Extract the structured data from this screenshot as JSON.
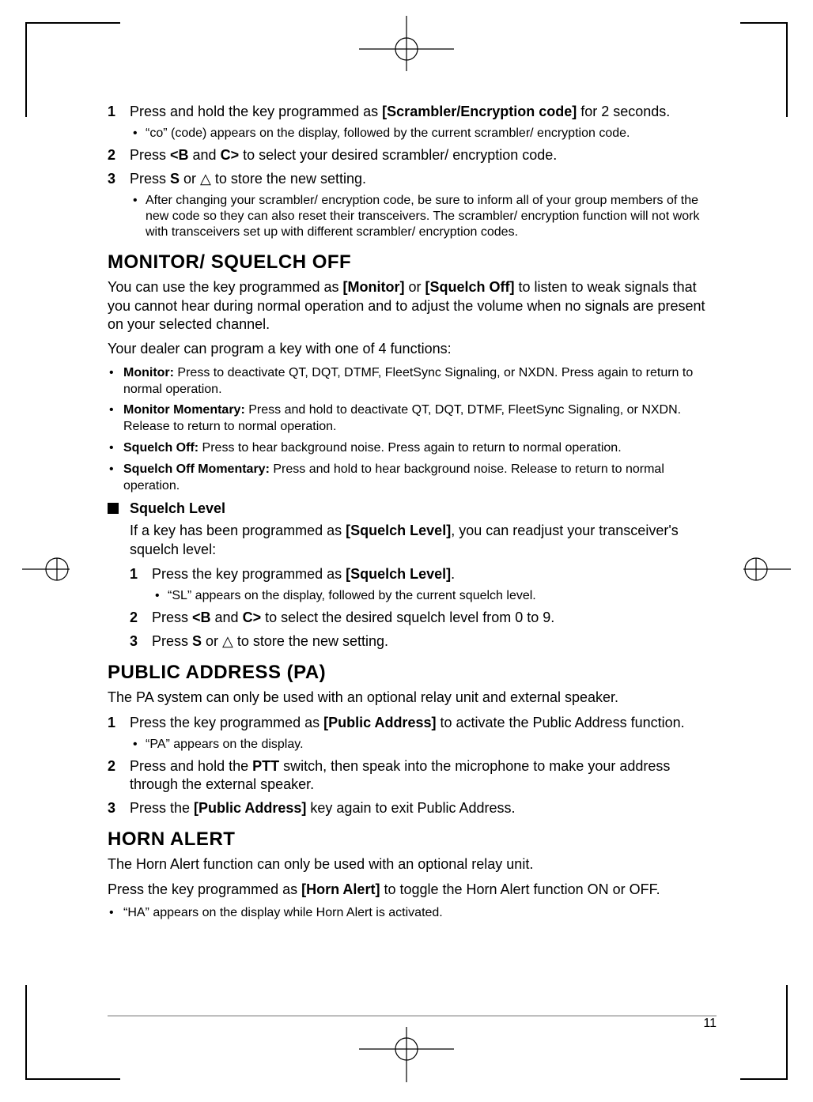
{
  "page_number": "11",
  "colors": {
    "text": "#000000",
    "bg": "#ffffff",
    "rule": "#bfbfbf"
  },
  "steps_top": [
    {
      "num": "1",
      "html": "Press and hold the key programmed as <b>[Scrambler/Encryption code]</b> for 2 seconds.",
      "sub": [
        "“co” (code) appears on the display, followed by the current scrambler/ encryption code."
      ]
    },
    {
      "num": "2",
      "html": "Press <b>&lt;B</b> and <b>C&gt;</b> to select your desired scrambler/ encryption code.",
      "sub": []
    },
    {
      "num": "3",
      "html": "Press <b>S</b> or △ to store the new setting.",
      "sub": [
        "After changing your scrambler/ encryption code, be sure to inform all of your group members of the new code so they can also reset their transceivers.  The scrambler/ encryption function will not work with transceivers set up with different scrambler/ encryption codes."
      ]
    }
  ],
  "monitor": {
    "title": "MONITOR/ SQUELCH OFF",
    "p1": "You can use the key programmed as <b>[Monitor]</b> or <b>[Squelch Off]</b> to listen to weak signals that you cannot hear during normal operation and to adjust the volume when no signals are present on your selected channel.",
    "p2": "Your dealer can program a key with one of 4 functions:",
    "bullets": [
      "<b>Monitor:</b>  Press to deactivate QT, DQT, DTMF, FleetSync Signaling, or NXDN.  Press again to return to normal operation.",
      "<b>Monitor Momentary:</b>  Press and hold to deactivate QT, DQT, DTMF, FleetSync Signaling, or NXDN.  Release to return to normal operation.",
      "<b>Squelch Off:</b>  Press to hear background noise.  Press again to return to normal operation.",
      "<b>Squelch Off Momentary:</b>  Press and hold to hear background noise.  Release to return to normal operation."
    ],
    "sub_title": "Squelch Level",
    "sub_intro": "If a key has been programmed as <b>[Squelch Level]</b>, you can readjust your transceiver's squelch level:",
    "sub_steps": [
      {
        "num": "1",
        "html": "Press the key programmed as <b>[Squelch Level]</b>.",
        "sub": [
          "“SL” appears on the display, followed by the current squelch level."
        ]
      },
      {
        "num": "2",
        "html": "Press <b>&lt;B</b> and <b>C&gt;</b> to select the desired squelch level from 0 to 9.",
        "sub": []
      },
      {
        "num": "3",
        "html": "Press <b>S</b> or △ to store the new setting.",
        "sub": []
      }
    ]
  },
  "pa": {
    "title": "PUBLIC ADDRESS (PA)",
    "p1": "The PA system can only be used with an optional relay unit and external speaker.",
    "steps": [
      {
        "num": "1",
        "html": "Press the key programmed as <b>[Public Address]</b> to activate the Public Address function.",
        "sub": [
          "“PA” appears on the display."
        ]
      },
      {
        "num": "2",
        "html": "Press and hold the <b>PTT</b> switch, then speak into the microphone to make your address through the external speaker.",
        "sub": []
      },
      {
        "num": "3",
        "html": "Press the <b>[Public Address]</b> key again to exit Public Address.",
        "sub": []
      }
    ]
  },
  "horn": {
    "title": "HORN ALERT",
    "p1": "The Horn Alert function can only be used with an optional relay unit.",
    "p2": "Press the key programmed as <b>[Horn Alert]</b> to toggle the Horn Alert function ON or OFF.",
    "bullets": [
      "“HA” appears on the display while Horn Alert is activated."
    ]
  }
}
